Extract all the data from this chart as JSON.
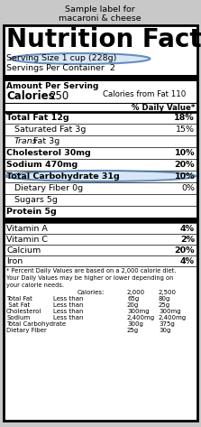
{
  "title_line1": "Sample label for",
  "title_line2": "macaroni & cheese",
  "outer_bg": "#c8c8c8",
  "rows": [
    {
      "text": "Total Fat 12g",
      "bold": true,
      "indent": false,
      "pct": "18%",
      "thick": true
    },
    {
      "text": "Saturated Fat 3g",
      "bold": false,
      "indent": true,
      "pct": "15%",
      "thick": false
    },
    {
      "text_italic": "Trans",
      "text_normal": " Fat 3g",
      "bold": false,
      "indent": true,
      "pct": "",
      "thick": false
    },
    {
      "text": "Cholesterol 30mg",
      "bold": true,
      "indent": false,
      "pct": "10%",
      "thick": false
    },
    {
      "text": "Sodium 470mg",
      "bold": true,
      "indent": false,
      "pct": "20%",
      "thick": false
    },
    {
      "text": "Total Carbohydrate 31g",
      "bold": true,
      "indent": false,
      "pct": "10%",
      "thick": false,
      "highlight": true
    },
    {
      "text": "Dietary Fiber 0g",
      "bold": false,
      "indent": true,
      "pct": "0%",
      "thick": false
    },
    {
      "text": "Sugars 5g",
      "bold": false,
      "indent": true,
      "pct": "",
      "thick": false
    },
    {
      "text": "Protein 5g",
      "bold": true,
      "indent": false,
      "pct": "",
      "thick": false
    }
  ],
  "vitamin_rows": [
    {
      "text": "Vitamin A",
      "pct": "4%"
    },
    {
      "text": "Vitamin C",
      "pct": "2%"
    },
    {
      "text": "Calcium",
      "pct": "20%"
    },
    {
      "text": "Iron",
      "pct": "4%"
    }
  ],
  "footnote": "* Percent Daily Values are based on a 2,000 calorie diet.\nYour Daily Values may be higher or lower depending on\nyour calorie needs.",
  "table_header": [
    "Calories:",
    "2,000",
    "2,500"
  ],
  "table_rows": [
    [
      "Total Fat",
      "Less than",
      "65g",
      "80g"
    ],
    [
      " Sat Fat",
      "Less than",
      "20g",
      "25g"
    ],
    [
      "Cholesterol",
      "Less than",
      "300mg",
      "300mg"
    ],
    [
      "Sodium",
      "Less than",
      "2,400mg",
      "2,400mg"
    ],
    [
      "Total Carbohydrate",
      "",
      "300g",
      "375g"
    ],
    [
      "Dietary Fiber",
      "",
      "25g",
      "30g"
    ]
  ]
}
